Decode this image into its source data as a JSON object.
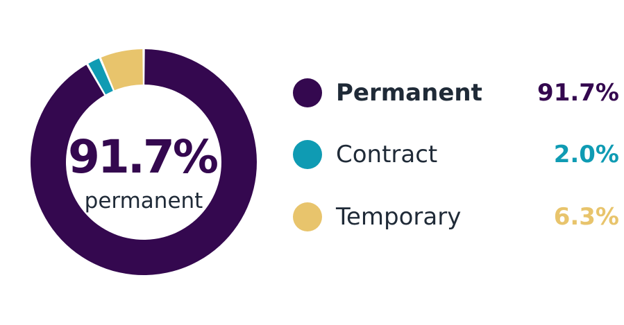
{
  "chart_data": {
    "type": "pie",
    "variant": "donut",
    "categories": [
      "Permanent",
      "Contract",
      "Temporary"
    ],
    "values": [
      91.7,
      2.0,
      6.3
    ],
    "value_labels": [
      "91.7%",
      "2.0%",
      "6.3%"
    ],
    "colors": [
      "#34084f",
      "#0f9bb3",
      "#e8c46c"
    ],
    "center": {
      "value": "91.7%",
      "label": "permanent"
    },
    "legend_placement": "right"
  }
}
